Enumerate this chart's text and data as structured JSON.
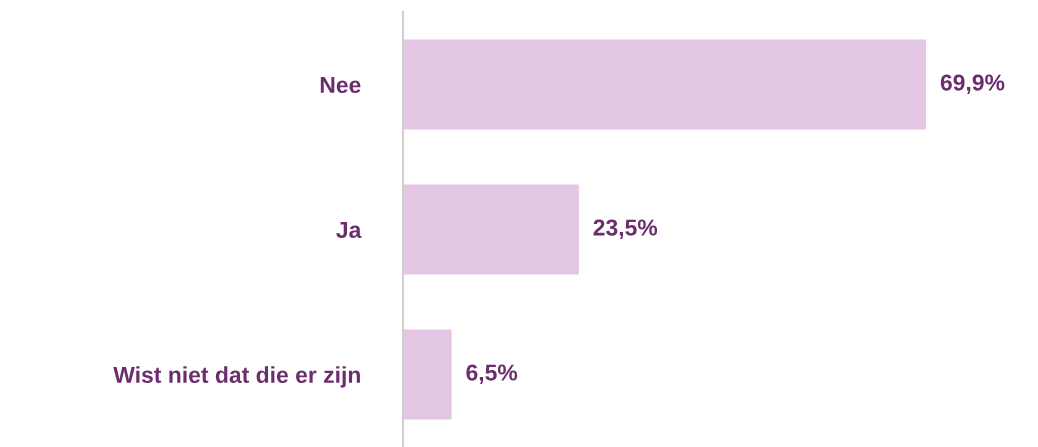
{
  "chart_data": {
    "type": "bar",
    "orientation": "horizontal",
    "categories": [
      "Nee",
      "Ja",
      "Wist niet dat die er zijn"
    ],
    "values": [
      69.9,
      23.5,
      6.5
    ],
    "value_labels": [
      "69,9%",
      "23,5%",
      "6,5%"
    ],
    "color": "#e3c6e3",
    "grid": false,
    "legend": false
  }
}
